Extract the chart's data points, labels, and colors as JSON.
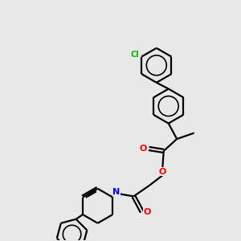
{
  "bg_color": "#e8e8e8",
  "bond_color": "#000000",
  "atom_colors": {
    "O": "#ff0000",
    "N": "#0000ff",
    "Cl": "#00bb00"
  },
  "line_width": 1.6,
  "figsize": [
    3.0,
    3.0
  ],
  "dpi": 100,
  "xlim": [
    0,
    10
  ],
  "ylim": [
    0,
    10
  ]
}
